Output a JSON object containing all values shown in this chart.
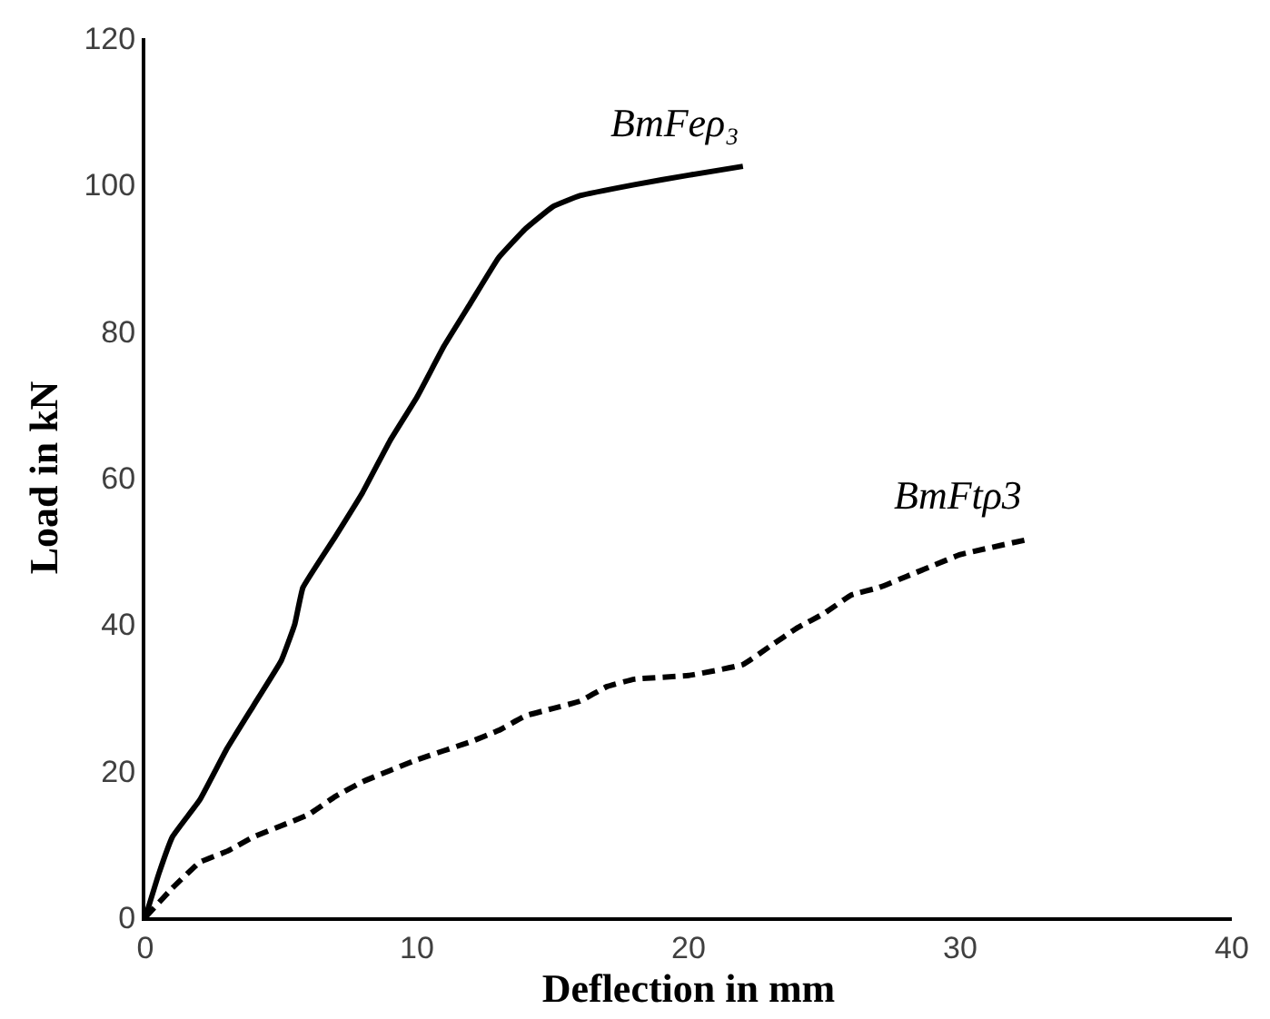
{
  "chart_data": {
    "type": "line",
    "xlabel": "Deflection in mm",
    "ylabel": "Load in kN",
    "xlim": [
      0,
      40
    ],
    "xticks": [
      0,
      10,
      20,
      30,
      40
    ],
    "ylim": [
      0,
      120
    ],
    "yticks": [
      0,
      20,
      40,
      60,
      80,
      100,
      120
    ],
    "legend": false,
    "series": [
      {
        "name": "BmFeρ₃",
        "color": "#000000",
        "line_style": "solid",
        "x": [
          0,
          0.5,
          1,
          2,
          3,
          4,
          5,
          5.5,
          5.8,
          7,
          8,
          9,
          10,
          11,
          12,
          13,
          14,
          15,
          16,
          18,
          20,
          22
        ],
        "values": [
          0,
          6,
          11,
          16,
          23,
          29,
          35,
          40,
          45,
          52,
          58,
          65,
          71,
          78,
          84,
          90,
          94,
          97,
          98.5,
          100,
          101.3,
          102.5
        ]
      },
      {
        "name": "BmFtρ3",
        "color": "#000000",
        "line_style": "dashed",
        "x": [
          0,
          1,
          2,
          3,
          4,
          5,
          6,
          7,
          8,
          10,
          12,
          13,
          14,
          15,
          16,
          17,
          18,
          20,
          22,
          23,
          24,
          25,
          26,
          27,
          28,
          29,
          30,
          32.4
        ],
        "values": [
          0,
          4,
          7.5,
          9,
          11,
          12.5,
          14,
          16.5,
          18.5,
          21.5,
          24,
          25.5,
          27.5,
          28.5,
          29.5,
          31.5,
          32.5,
          33,
          34.5,
          37,
          39.5,
          41.5,
          44,
          45,
          46.5,
          48,
          49.5,
          51.5
        ]
      }
    ]
  }
}
